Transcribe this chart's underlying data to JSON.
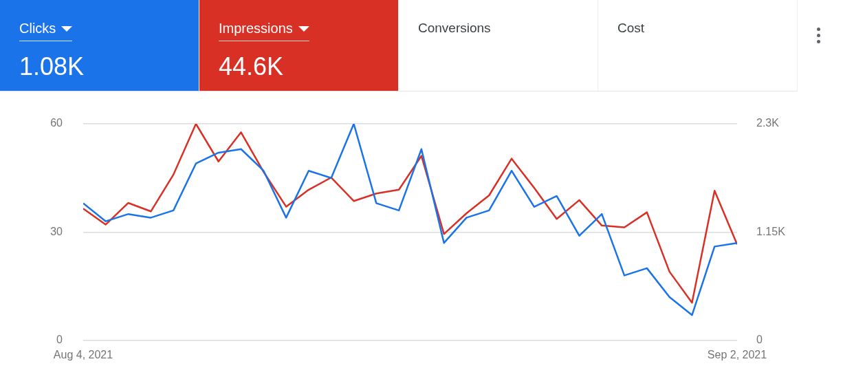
{
  "chart_data": {
    "type": "line",
    "x": [
      "2021-08-04",
      "2021-08-05",
      "2021-08-06",
      "2021-08-07",
      "2021-08-08",
      "2021-08-09",
      "2021-08-10",
      "2021-08-11",
      "2021-08-12",
      "2021-08-13",
      "2021-08-14",
      "2021-08-15",
      "2021-08-16",
      "2021-08-17",
      "2021-08-18",
      "2021-08-19",
      "2021-08-20",
      "2021-08-21",
      "2021-08-22",
      "2021-08-23",
      "2021-08-24",
      "2021-08-25",
      "2021-08-26",
      "2021-08-27",
      "2021-08-28",
      "2021-08-29",
      "2021-08-30",
      "2021-08-31",
      "2021-09-01",
      "2021-09-02"
    ],
    "series": [
      {
        "name": "Clicks",
        "color": "#1a73e8",
        "values": [
          38,
          33,
          35,
          34,
          36,
          49,
          52,
          53,
          47,
          34,
          47,
          45,
          60,
          38,
          36,
          53,
          27,
          34,
          36,
          47,
          37,
          40,
          29,
          35,
          18,
          20,
          12,
          7,
          26,
          27
        ]
      },
      {
        "name": "Impressions",
        "color": "#d93025",
        "axis": "y2",
        "values": [
          1400,
          1230,
          1460,
          1370,
          1760,
          2300,
          1900,
          2210,
          1790,
          1420,
          1600,
          1730,
          1480,
          1560,
          1600,
          1960,
          1130,
          1350,
          1540,
          1930,
          1620,
          1290,
          1490,
          1220,
          1200,
          1360,
          730,
          400,
          1590,
          1020
        ]
      }
    ],
    "annotations": [
      "1.08K",
      "44.6K",
      "Conversions",
      "Cost"
    ],
    "xlim": [
      "2021-08-04",
      "2021-09-02"
    ],
    "xticks": [
      {
        "value": "2021-08-04",
        "label": "Aug 4, 2021"
      },
      {
        "value": "2021-09-02",
        "label": "Sep 2, 2021"
      }
    ],
    "ylim": [
      0,
      60
    ],
    "yticks": [
      0,
      30,
      60
    ],
    "y2lim": [
      0,
      2300
    ],
    "y2ticks": [
      0,
      {
        "value": 1150,
        "label": "1.15K"
      },
      {
        "value": 2300,
        "label": "2.3K"
      }
    ],
    "grid": "y",
    "legend": "top",
    "marker": "none",
    "line_style": "solid"
  }
}
